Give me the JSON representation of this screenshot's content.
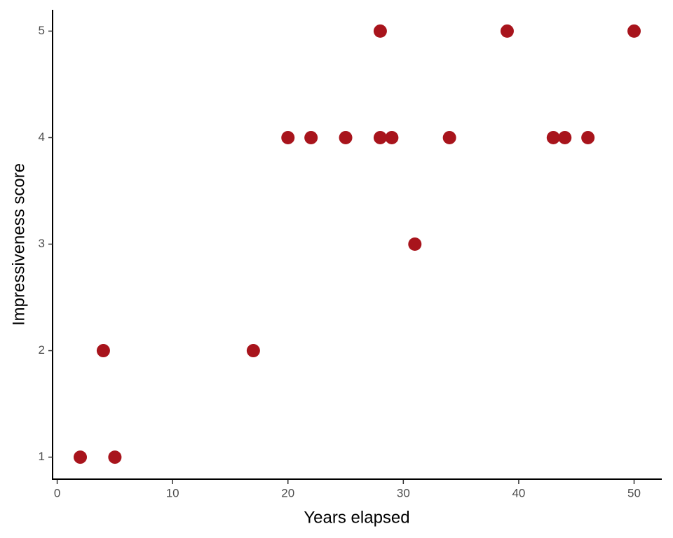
{
  "chart_data": {
    "type": "scatter",
    "x_label": "Years elapsed",
    "y_label": "Impressiveness score",
    "x": [
      2,
      4,
      5,
      17,
      20,
      22,
      25,
      28,
      28,
      29,
      31,
      34,
      39,
      43,
      44,
      46,
      50
    ],
    "values": [
      1,
      2,
      1,
      2,
      4,
      4,
      4,
      5,
      4,
      4,
      3,
      4,
      5,
      4,
      4,
      4,
      5
    ],
    "color": "#a8141c",
    "xlim": [
      -0.4,
      52.4
    ],
    "xticks": [
      0,
      10,
      20,
      30,
      40,
      50
    ],
    "ylim": [
      0.8,
      5.2
    ],
    "yticks": [
      1,
      2,
      3,
      4,
      5
    ]
  }
}
